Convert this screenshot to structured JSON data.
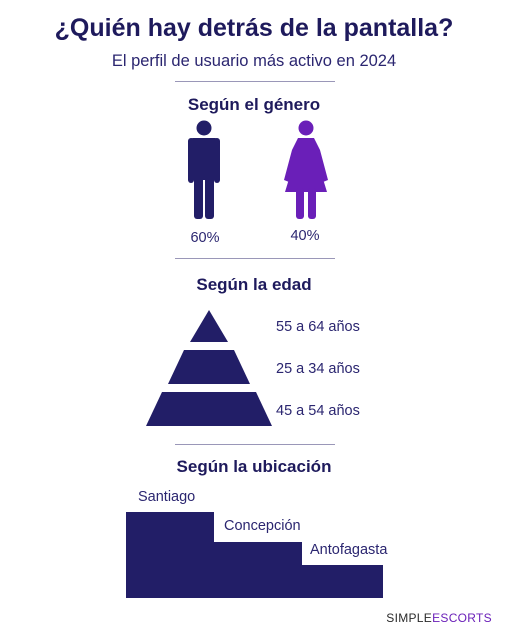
{
  "header": {
    "title": "¿Quién hay detrás de la pantalla?",
    "subtitle": "El perfil de usuario más activo en 2024"
  },
  "gender": {
    "title": "Según el género",
    "male": {
      "percent": "60%",
      "icon": "male-figure-icon",
      "color": "#221e67"
    },
    "female": {
      "percent": "40%",
      "icon": "female-figure-icon",
      "color": "#6a1fb8"
    }
  },
  "age": {
    "title": "Según la edad",
    "levels": [
      {
        "label": "55 a 64 años"
      },
      {
        "label": "25 a 34 años"
      },
      {
        "label": "45 a 54 años"
      }
    ]
  },
  "location": {
    "title": "Según la ubicación",
    "places": [
      {
        "label": "Santiago",
        "rank": 1
      },
      {
        "label": "Concepción",
        "rank": 2
      },
      {
        "label": "Antofagasta",
        "rank": 3
      }
    ]
  },
  "brand": {
    "part1": "SIMPLE",
    "part2": "ESCORTS"
  },
  "colors": {
    "navy": "#221e67",
    "purple": "#6a1fb8",
    "divider": "#9a97b8"
  }
}
